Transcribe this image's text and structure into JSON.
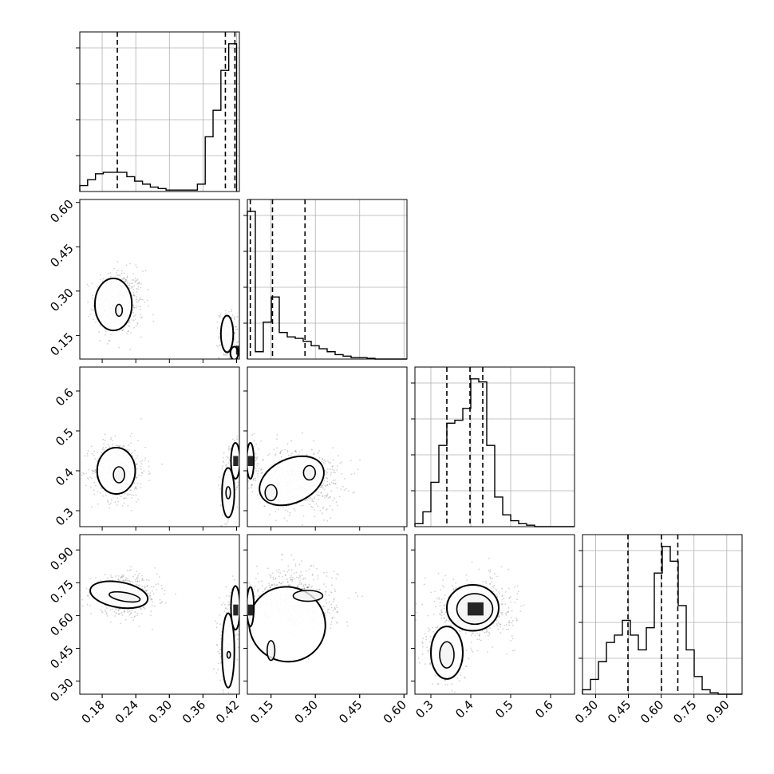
{
  "chart_data": {
    "type": "corner",
    "variables": [
      {
        "range": [
          0.14,
          0.425
        ],
        "ticks": [
          0.18,
          0.24,
          0.3,
          0.36,
          0.42
        ],
        "tick_labels": [
          "0.18",
          "0.24",
          "0.30",
          "0.36",
          "0.42"
        ],
        "quantiles": [
          0.207,
          0.4,
          0.417
        ],
        "hist": {
          "edges": [
            0.14,
            0.154,
            0.168,
            0.182,
            0.196,
            0.21,
            0.224,
            0.238,
            0.252,
            0.266,
            0.28,
            0.294,
            0.308,
            0.322,
            0.336,
            0.35,
            0.364,
            0.378,
            0.392,
            0.406,
            0.42
          ],
          "counts": [
            0.04,
            0.08,
            0.12,
            0.13,
            0.13,
            0.13,
            0.1,
            0.07,
            0.05,
            0.03,
            0.02,
            0.01,
            0.01,
            0.01,
            0.01,
            0.05,
            0.37,
            0.55,
            0.82,
            1.0
          ]
        }
      },
      {
        "range": [
          0.07,
          0.61
        ],
        "ticks": [
          0.15,
          0.3,
          0.45,
          0.6
        ],
        "tick_labels": [
          "0.15",
          "0.30",
          "0.45",
          "0.60"
        ],
        "quantiles": [
          0.08,
          0.155,
          0.265
        ],
        "hist": {
          "edges": [
            0.07,
            0.097,
            0.124,
            0.151,
            0.178,
            0.205,
            0.232,
            0.259,
            0.286,
            0.313,
            0.34,
            0.367,
            0.394,
            0.421,
            0.448,
            0.475,
            0.502,
            0.529,
            0.556,
            0.583,
            0.61
          ],
          "counts": [
            1.0,
            0.05,
            0.25,
            0.42,
            0.18,
            0.15,
            0.14,
            0.12,
            0.09,
            0.07,
            0.05,
            0.03,
            0.02,
            0.01,
            0.01,
            0.005,
            0.0,
            0.0,
            0.0,
            0.0
          ]
        }
      },
      {
        "range": [
          0.26,
          0.66
        ],
        "ticks": [
          0.3,
          0.4,
          0.5,
          0.6
        ],
        "tick_labels": [
          "0.3",
          "0.4",
          "0.5",
          "0.6"
        ],
        "quantiles": [
          0.34,
          0.398,
          0.43
        ],
        "hist": {
          "edges": [
            0.26,
            0.28,
            0.3,
            0.32,
            0.34,
            0.36,
            0.38,
            0.4,
            0.42,
            0.44,
            0.46,
            0.48,
            0.5,
            0.52,
            0.54,
            0.56,
            0.58,
            0.6,
            0.62,
            0.64,
            0.66
          ],
          "counts": [
            0.02,
            0.1,
            0.3,
            0.55,
            0.7,
            0.72,
            0.8,
            1.0,
            0.98,
            0.55,
            0.2,
            0.08,
            0.04,
            0.02,
            0.01,
            0.0,
            0.0,
            0.0,
            0.0,
            0.0
          ]
        }
      },
      {
        "range": [
          0.24,
          0.97
        ],
        "ticks": [
          0.3,
          0.45,
          0.6,
          0.75,
          0.9
        ],
        "tick_labels": [
          "0.30",
          "0.45",
          "0.60",
          "0.75",
          "0.90"
        ],
        "quantiles": [
          0.448,
          0.601,
          0.676
        ],
        "hist": {
          "edges": [
            0.24,
            0.2765,
            0.313,
            0.3495,
            0.386,
            0.4225,
            0.459,
            0.4955,
            0.532,
            0.5685,
            0.605,
            0.6415,
            0.678,
            0.7145,
            0.751,
            0.7875,
            0.824,
            0.8605,
            0.897,
            0.9335,
            0.97
          ],
          "counts": [
            0.03,
            0.1,
            0.22,
            0.35,
            0.4,
            0.5,
            0.4,
            0.3,
            0.45,
            0.82,
            1.0,
            0.9,
            0.6,
            0.3,
            0.12,
            0.03,
            0.01,
            0.0,
            0.0,
            0.0
          ]
        }
      }
    ],
    "pairs": [
      {
        "row": 1,
        "col": 0,
        "clusters": [
          {
            "cx": 0.21,
            "cy": 0.26,
            "sx": 0.022,
            "sy": 0.055,
            "n": 520
          },
          {
            "cx": 0.405,
            "cy": 0.15,
            "sx": 0.008,
            "sy": 0.04,
            "n": 240
          }
        ],
        "contours": [
          {
            "cx": 0.2,
            "cy": 0.255,
            "rx": 0.033,
            "ry": 0.088,
            "cls": "outer"
          },
          {
            "cx": 0.21,
            "cy": 0.235,
            "rx": 0.006,
            "ry": 0.02,
            "cls": "inner"
          },
          {
            "cx": 0.403,
            "cy": 0.155,
            "rx": 0.011,
            "ry": 0.062,
            "cls": "outer"
          },
          {
            "cx": 0.416,
            "cy": 0.09,
            "rx": 0.007,
            "ry": 0.022,
            "cls": "outer"
          }
        ],
        "density": [
          {
            "x": 0.419,
            "y": 0.085,
            "w": 0.008,
            "h": 0.03
          }
        ]
      },
      {
        "row": 2,
        "col": 0,
        "clusters": [
          {
            "cx": 0.21,
            "cy": 0.4,
            "sx": 0.024,
            "sy": 0.038,
            "n": 520
          },
          {
            "cx": 0.405,
            "cy": 0.36,
            "sx": 0.007,
            "sy": 0.04,
            "n": 200
          },
          {
            "cx": 0.418,
            "cy": 0.42,
            "sx": 0.005,
            "sy": 0.025,
            "n": 180
          }
        ],
        "contours": [
          {
            "cx": 0.205,
            "cy": 0.4,
            "rx": 0.034,
            "ry": 0.058,
            "cls": "outer"
          },
          {
            "cx": 0.21,
            "cy": 0.39,
            "rx": 0.01,
            "ry": 0.02,
            "cls": "inner"
          },
          {
            "cx": 0.405,
            "cy": 0.345,
            "rx": 0.011,
            "ry": 0.062,
            "cls": "outer"
          },
          {
            "cx": 0.405,
            "cy": 0.345,
            "rx": 0.004,
            "ry": 0.015,
            "cls": "inner"
          },
          {
            "cx": 0.418,
            "cy": 0.425,
            "rx": 0.008,
            "ry": 0.045,
            "cls": "outer"
          }
        ],
        "density": [
          {
            "x": 0.414,
            "y": 0.412,
            "w": 0.009,
            "h": 0.025
          }
        ]
      },
      {
        "row": 2,
        "col": 1,
        "clusters": [
          {
            "cx": 0.25,
            "cy": 0.38,
            "sx": 0.07,
            "sy": 0.04,
            "n": 620
          },
          {
            "cx": 0.08,
            "cy": 0.42,
            "sx": 0.01,
            "sy": 0.025,
            "n": 200
          }
        ],
        "contours": [
          {
            "cx": 0.22,
            "cy": 0.375,
            "rx": 0.115,
            "ry": 0.055,
            "cls": "outer",
            "rot": -25
          },
          {
            "cx": 0.28,
            "cy": 0.395,
            "rx": 0.02,
            "ry": 0.018,
            "cls": "inner"
          },
          {
            "cx": 0.15,
            "cy": 0.345,
            "rx": 0.02,
            "ry": 0.02,
            "cls": "inner"
          },
          {
            "cx": 0.08,
            "cy": 0.425,
            "rx": 0.012,
            "ry": 0.045,
            "cls": "outer"
          }
        ],
        "density": [
          {
            "x": 0.072,
            "y": 0.412,
            "w": 0.02,
            "h": 0.025
          }
        ]
      },
      {
        "row": 3,
        "col": 0,
        "clusters": [
          {
            "cx": 0.22,
            "cy": 0.69,
            "sx": 0.03,
            "sy": 0.045,
            "n": 520
          },
          {
            "cx": 0.403,
            "cy": 0.45,
            "sx": 0.007,
            "sy": 0.1,
            "n": 240
          },
          {
            "cx": 0.418,
            "cy": 0.63,
            "sx": 0.005,
            "sy": 0.05,
            "n": 180
          }
        ],
        "contours": [
          {
            "cx": 0.21,
            "cy": 0.695,
            "rx": 0.052,
            "ry": 0.058,
            "cls": "outer",
            "rot": 10
          },
          {
            "cx": 0.22,
            "cy": 0.685,
            "rx": 0.028,
            "ry": 0.02,
            "cls": "inner",
            "rot": 10
          },
          {
            "cx": 0.405,
            "cy": 0.44,
            "rx": 0.011,
            "ry": 0.17,
            "cls": "outer"
          },
          {
            "cx": 0.406,
            "cy": 0.42,
            "rx": 0.003,
            "ry": 0.015,
            "cls": "inner"
          },
          {
            "cx": 0.418,
            "cy": 0.635,
            "rx": 0.008,
            "ry": 0.1,
            "cls": "outer"
          }
        ],
        "density": [
          {
            "x": 0.414,
            "y": 0.6,
            "w": 0.009,
            "h": 0.05
          }
        ]
      },
      {
        "row": 3,
        "col": 1,
        "clusters": [
          {
            "cx": 0.23,
            "cy": 0.66,
            "sx": 0.07,
            "sy": 0.08,
            "n": 620
          },
          {
            "cx": 0.08,
            "cy": 0.62,
            "sx": 0.01,
            "sy": 0.05,
            "n": 200
          }
        ],
        "contours": [
          {
            "cx": 0.205,
            "cy": 0.56,
            "rx": 0.13,
            "ry": 0.17,
            "cls": "outer",
            "rot": 30
          },
          {
            "cx": 0.275,
            "cy": 0.69,
            "rx": 0.05,
            "ry": 0.025,
            "cls": "inner"
          },
          {
            "cx": 0.15,
            "cy": 0.44,
            "rx": 0.013,
            "ry": 0.045,
            "cls": "inner"
          },
          {
            "cx": 0.08,
            "cy": 0.64,
            "rx": 0.012,
            "ry": 0.09,
            "cls": "outer"
          }
        ],
        "density": [
          {
            "x": 0.072,
            "y": 0.6,
            "w": 0.02,
            "h": 0.05
          }
        ]
      },
      {
        "row": 3,
        "col": 2,
        "clusters": [
          {
            "cx": 0.41,
            "cy": 0.63,
            "sx": 0.05,
            "sy": 0.07,
            "n": 620
          },
          {
            "cx": 0.34,
            "cy": 0.42,
            "sx": 0.025,
            "sy": 0.07,
            "n": 260
          }
        ],
        "contours": [
          {
            "cx": 0.405,
            "cy": 0.635,
            "rx": 0.065,
            "ry": 0.105,
            "cls": "outer"
          },
          {
            "cx": 0.41,
            "cy": 0.63,
            "rx": 0.045,
            "ry": 0.07,
            "cls": "inner"
          },
          {
            "cx": 0.34,
            "cy": 0.43,
            "rx": 0.04,
            "ry": 0.12,
            "cls": "outer"
          },
          {
            "cx": 0.34,
            "cy": 0.42,
            "rx": 0.018,
            "ry": 0.06,
            "cls": "inner"
          }
        ],
        "density": [
          {
            "x": 0.392,
            "y": 0.6,
            "w": 0.04,
            "h": 0.06
          }
        ]
      }
    ]
  }
}
